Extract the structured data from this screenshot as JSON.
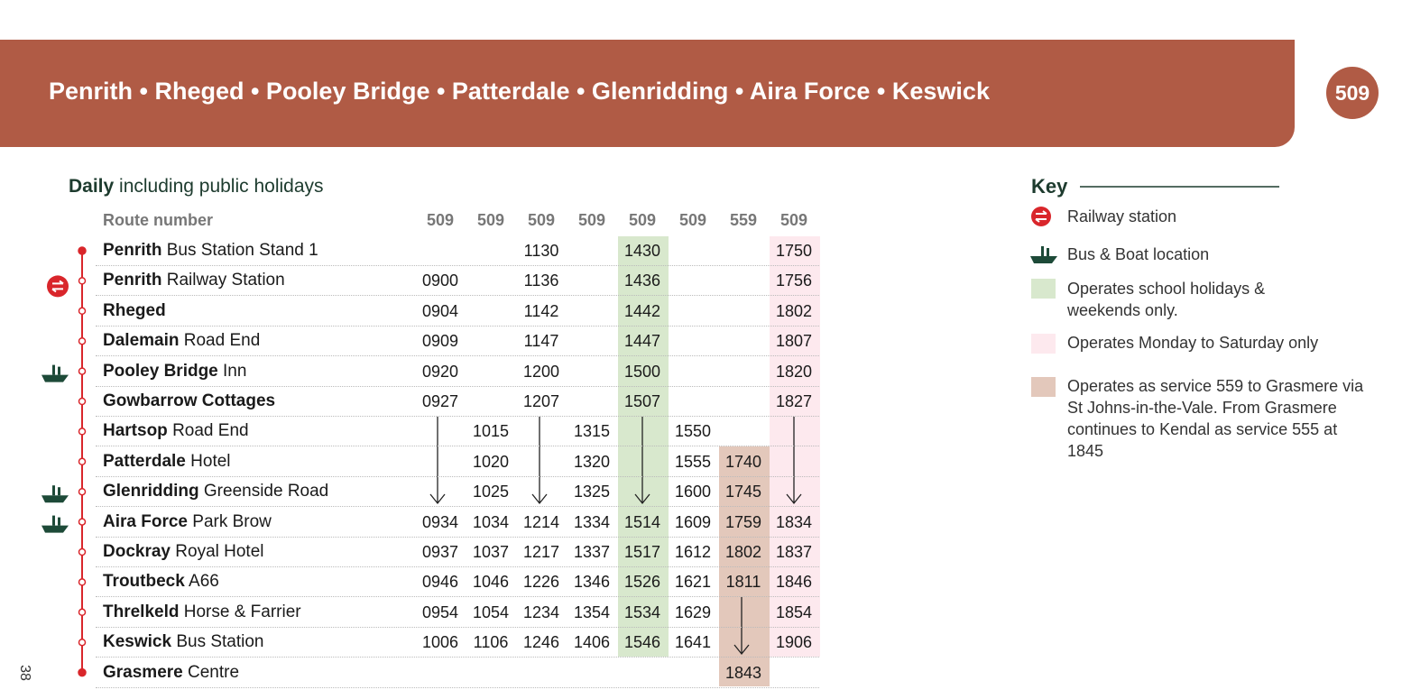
{
  "header": {
    "title": "Penrith • Rheged • Pooley Bridge • Patterdale • Glenridding • Aira Force • Keswick",
    "route_badge": "509"
  },
  "subtitle": {
    "bold": "Daily",
    "rest": "including public holidays"
  },
  "table": {
    "route_label": "Route number",
    "routes": [
      "509",
      "509",
      "509",
      "509",
      "509",
      "509",
      "559",
      "509"
    ],
    "rows": [
      {
        "stop_bold": "Penrith",
        "stop_rest": "Bus Station Stand 1",
        "times": [
          null,
          null,
          "1130",
          null,
          "1430",
          null,
          null,
          "1750"
        ]
      },
      {
        "stop_bold": "Penrith",
        "stop_rest": "Railway Station",
        "icon": "rail",
        "times": [
          "0900",
          null,
          "1136",
          null,
          "1436",
          null,
          null,
          "1756"
        ]
      },
      {
        "stop_bold": "Rheged",
        "times": [
          "0904",
          null,
          "1142",
          null,
          "1442",
          null,
          null,
          "1802"
        ]
      },
      {
        "stop_bold": "Dalemain",
        "stop_rest": "Road End",
        "times": [
          "0909",
          null,
          "1147",
          null,
          "1447",
          null,
          null,
          "1807"
        ]
      },
      {
        "stop_bold": "Pooley Bridge",
        "stop_rest": "Inn",
        "icon": "boat",
        "times": [
          "0920",
          null,
          "1200",
          null,
          "1500",
          null,
          null,
          "1820"
        ]
      },
      {
        "stop_bold": "Gowbarrow Cottages",
        "times": [
          "0927",
          null,
          "1207",
          null,
          "1507",
          null,
          null,
          "1827"
        ]
      },
      {
        "stop_bold": "Hartsop",
        "stop_rest": "Road End",
        "times": [
          null,
          "1015",
          null,
          "1315",
          null,
          "1550",
          null,
          null
        ]
      },
      {
        "stop_bold": "Patterdale",
        "stop_rest": "Hotel",
        "times": [
          null,
          "1020",
          null,
          "1320",
          null,
          "1555",
          "1740",
          null
        ]
      },
      {
        "stop_bold": "Glenridding",
        "stop_rest": "Greenside Road",
        "icon": "boat",
        "times": [
          null,
          "1025",
          null,
          "1325",
          null,
          "1600",
          "1745",
          null
        ]
      },
      {
        "stop_bold": "Aira Force",
        "stop_rest": "Park Brow",
        "icon": "boat",
        "times": [
          "0934",
          "1034",
          "1214",
          "1334",
          "1514",
          "1609",
          "1759",
          "1834"
        ]
      },
      {
        "stop_bold": "Dockray",
        "stop_rest": "Royal Hotel",
        "times": [
          "0937",
          "1037",
          "1217",
          "1337",
          "1517",
          "1612",
          "1802",
          "1837"
        ]
      },
      {
        "stop_bold": "Troutbeck",
        "stop_rest": "A66",
        "times": [
          "0946",
          "1046",
          "1226",
          "1346",
          "1526",
          "1621",
          "1811",
          "1846"
        ]
      },
      {
        "stop_bold": "Threlkeld",
        "stop_rest": "Horse & Farrier",
        "times": [
          "0954",
          "1054",
          "1234",
          "1354",
          "1534",
          "1629",
          null,
          "1854"
        ]
      },
      {
        "stop_bold": "Keswick",
        "stop_rest": "Bus Station",
        "times": [
          "1006",
          "1106",
          "1246",
          "1406",
          "1546",
          "1641",
          null,
          "1906"
        ]
      },
      {
        "stop_bold": "Grasmere",
        "stop_rest": "Centre",
        "times": [
          null,
          null,
          null,
          null,
          null,
          null,
          "1843",
          null
        ]
      }
    ]
  },
  "key": {
    "title": "Key",
    "items": [
      "Railway station",
      "Bus & Boat location",
      "Operates school holidays & weekends only.",
      "Operates Monday to Saturday only",
      "Operates as service 559 to Grasmere via St Johns-in-the-Vale. From Grasmere continues to Kendal as service 555 at 1845"
    ]
  },
  "page_number": "38"
}
